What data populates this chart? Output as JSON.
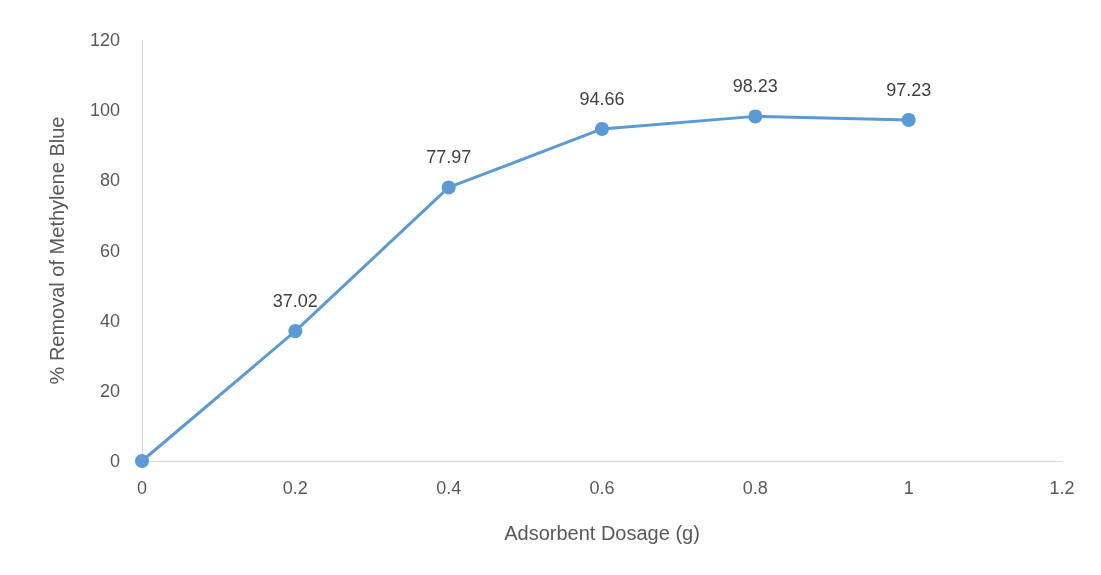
{
  "chart_data": {
    "type": "line",
    "xlabel": "Adsorbent Dosage (g)",
    "ylabel": "% Removal of Methylene Blue",
    "x": [
      0,
      0.2,
      0.4,
      0.6,
      0.8,
      1
    ],
    "series": [
      {
        "color": "#5b9bd5",
        "values": [
          0,
          37.02,
          77.97,
          94.66,
          98.23,
          97.23
        ],
        "value_labels": [
          null,
          "37.02",
          "77.97",
          "94.66",
          "98.23",
          "97.23"
        ]
      }
    ],
    "xlim": [
      0,
      1.2
    ],
    "xticks": [
      0,
      0.2,
      0.4,
      0.6,
      0.8,
      1,
      1.2
    ],
    "ylim": [
      0,
      120
    ],
    "yticks": [
      0,
      20,
      40,
      60,
      80,
      100,
      120
    ],
    "grid": false,
    "marker": "circle",
    "line_style": "solid"
  }
}
